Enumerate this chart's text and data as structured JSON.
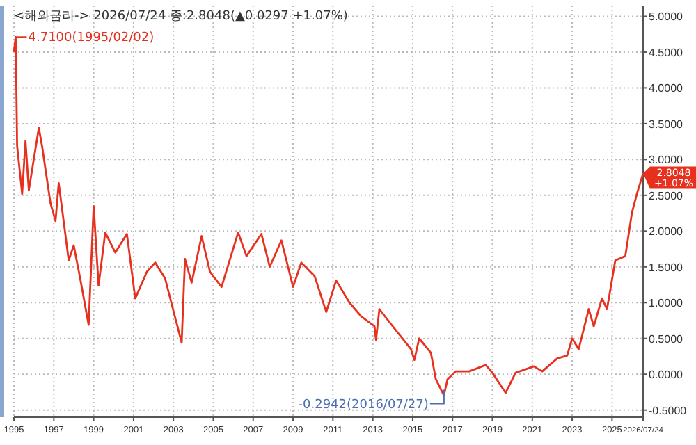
{
  "chart_data": {
    "type": "line",
    "title": "<해외금리-> 2026/07/24 종:2.8048(▲0.0297 +1.07%)",
    "x": [
      "1995-01-01",
      "1995-02-02",
      "1995-03",
      "1995-06",
      "1995-08",
      "1995-10",
      "1996-04",
      "1996-06",
      "1996-11",
      "1997-02",
      "1997-04",
      "1997-10",
      "1998-01",
      "1998-05",
      "1998-10",
      "1999-01",
      "1999-04",
      "1999-08",
      "2000-02",
      "2000-09",
      "2001-02",
      "2001-09",
      "2002-02",
      "2002-08",
      "2003-06",
      "2003-08",
      "2003-12",
      "2004-06",
      "2004-11",
      "2005-06",
      "2006-04",
      "2006-09",
      "2007-06",
      "2007-11",
      "2008-06",
      "2009-01",
      "2009-06",
      "2010-02",
      "2010-09",
      "2011-03",
      "2011-11",
      "2012-06",
      "2013-02",
      "2013-03",
      "2013-05",
      "2014-01",
      "2014-12",
      "2015-02",
      "2015-05",
      "2015-12",
      "2016-03",
      "2016-07-27",
      "2016-10",
      "2017-03",
      "2017-11",
      "2018-09",
      "2019-01",
      "2019-09",
      "2020-03",
      "2021-02",
      "2021-07",
      "2022-04",
      "2022-10",
      "2023-01",
      "2023-05",
      "2023-11",
      "2024-02",
      "2024-07",
      "2024-10",
      "2025-03",
      "2025-09",
      "2026-01",
      "2026-04",
      "2026-07-24"
    ],
    "series": [
      {
        "color": "#e8301f",
        "values": [
          4.5,
          4.71,
          3.19,
          2.52,
          3.26,
          2.57,
          3.44,
          3.18,
          2.39,
          2.14,
          2.67,
          1.59,
          1.8,
          1.33,
          0.69,
          2.35,
          1.24,
          1.98,
          1.7,
          1.96,
          1.06,
          1.43,
          1.56,
          1.34,
          0.44,
          1.61,
          1.28,
          1.93,
          1.43,
          1.22,
          1.98,
          1.65,
          1.96,
          1.5,
          1.87,
          1.22,
          1.56,
          1.37,
          0.87,
          1.31,
          1.0,
          0.81,
          0.67,
          0.48,
          0.91,
          0.67,
          0.35,
          0.2,
          0.5,
          0.3,
          -0.07,
          -0.2942,
          -0.07,
          0.04,
          0.04,
          0.13,
          0.02,
          -0.26,
          0.02,
          0.11,
          0.04,
          0.22,
          0.26,
          0.5,
          0.35,
          0.91,
          0.67,
          1.06,
          0.91,
          1.59,
          1.65,
          2.26,
          2.52,
          2.8048
        ]
      }
    ],
    "xlim": [
      "1995-01-01",
      "2026-07-24"
    ],
    "xticks": [
      {
        "value": "1995-01-01",
        "label": "1995"
      },
      {
        "value": "1997-01-01",
        "label": "1997"
      },
      {
        "value": "1999-01-01",
        "label": "1999"
      },
      {
        "value": "2001-01-01",
        "label": "2001"
      },
      {
        "value": "2003-01-01",
        "label": "2003"
      },
      {
        "value": "2005-01-01",
        "label": "2005"
      },
      {
        "value": "2007-01-01",
        "label": "2007"
      },
      {
        "value": "2009-01-01",
        "label": "2009"
      },
      {
        "value": "2011-01-01",
        "label": "2011"
      },
      {
        "value": "2013-01-01",
        "label": "2013"
      },
      {
        "value": "2015-01-01",
        "label": "2015"
      },
      {
        "value": "2017-01-01",
        "label": "2017"
      },
      {
        "value": "2019-01-01",
        "label": "2019"
      },
      {
        "value": "2021-01-01",
        "label": "2021"
      },
      {
        "value": "2023-01-01",
        "label": "2023"
      },
      {
        "value": "2025-01-01",
        "label": "2025"
      },
      {
        "value": "2026-07-24",
        "label": "2026/07/24"
      }
    ],
    "ylim": [
      -0.6,
      5.15
    ],
    "yticks": [
      {
        "value": -0.5,
        "label": "-0.5000"
      },
      {
        "value": 0,
        "label": "0.0000"
      },
      {
        "value": 0.5,
        "label": "0.5000"
      },
      {
        "value": 1,
        "label": "1.0000"
      },
      {
        "value": 1.5,
        "label": "1.5000"
      },
      {
        "value": 2,
        "label": "2.0000"
      },
      {
        "value": 2.5,
        "label": "2.5000"
      },
      {
        "value": 3,
        "label": "3.0000"
      },
      {
        "value": 3.5,
        "label": "3.5000"
      },
      {
        "value": 4,
        "label": "4.0000"
      },
      {
        "value": 4.5,
        "label": "4.5000"
      },
      {
        "value": 5,
        "label": "5.0000"
      }
    ],
    "annotations": [
      {
        "text": "4.7100(1995/02/02)",
        "x": "1995-02-02",
        "y": 4.71
      },
      {
        "text": "-0.2942(2016/07/27)",
        "x": "2016-07-27",
        "y": -0.2942
      },
      {
        "text": "2.8048 +1.07%",
        "x": "2026-07-24",
        "y": 2.8048
      }
    ],
    "grid": true,
    "marker": "none",
    "line_style": "solid"
  }
}
